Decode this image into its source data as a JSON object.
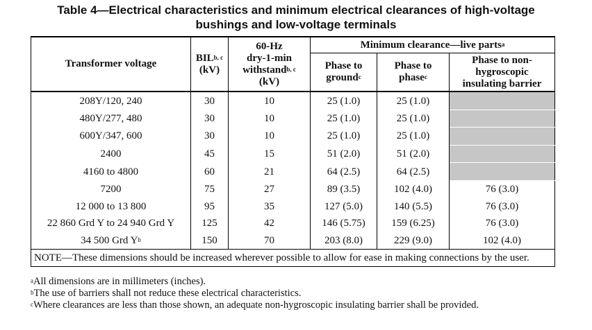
{
  "title_line1": "Table 4—Electrical characteristics and minimum electrical clearances of high-voltage",
  "title_line2": "bushings and low-voltage terminals",
  "headers": {
    "transformer_voltage": "Transformer voltage",
    "bil_1": "BIL",
    "bil_sup": "b, c",
    "bil_2": "(kV)",
    "hz_1": "60-Hz",
    "hz_2": "dry-1-min",
    "hz_3": "withstand",
    "hz_sup": "b, c",
    "hz_4": "(kV)",
    "min_clearance": "Minimum clearance—live parts",
    "min_clearance_sup": "a",
    "pg_1": "Phase to",
    "pg_2": "ground",
    "pg_sup": "c",
    "pp_1": "Phase to",
    "pp_2": "phase",
    "pp_sup": "c",
    "barrier_1": "Phase to non-",
    "barrier_2": "hygroscopic",
    "barrier_3": "insulating barrier"
  },
  "rows": [
    {
      "voltage": "208Y/120, 240",
      "voltage_sup": "",
      "bil": "30",
      "withstand": "10",
      "phase_ground": "25 (1.0)",
      "phase_phase": "25 (1.0)",
      "barrier": ""
    },
    {
      "voltage": "480Y/277, 480",
      "voltage_sup": "",
      "bil": "30",
      "withstand": "10",
      "phase_ground": "25 (1.0)",
      "phase_phase": "25 (1.0)",
      "barrier": ""
    },
    {
      "voltage": "600Y/347, 600",
      "voltage_sup": "",
      "bil": "30",
      "withstand": "10",
      "phase_ground": "25 (1.0)",
      "phase_phase": "25 (1.0)",
      "barrier": ""
    },
    {
      "voltage": "2400",
      "voltage_sup": "",
      "bil": "45",
      "withstand": "15",
      "phase_ground": "51 (2.0)",
      "phase_phase": "51 (2.0)",
      "barrier": ""
    },
    {
      "voltage": "4160 to 4800",
      "voltage_sup": "",
      "bil": "60",
      "withstand": "21",
      "phase_ground": "64 (2.5)",
      "phase_phase": "64 (2.5)",
      "barrier": ""
    },
    {
      "voltage": "7200",
      "voltage_sup": "",
      "bil": "75",
      "withstand": "27",
      "phase_ground": "89 (3.5)",
      "phase_phase": "102 (4.0)",
      "barrier": "76 (3.0)"
    },
    {
      "voltage": "12 000 to 13 800",
      "voltage_sup": "",
      "bil": "95",
      "withstand": "35",
      "phase_ground": "127 (5.0)",
      "phase_phase": "140 (5.5)",
      "barrier": "76 (3.0)"
    },
    {
      "voltage": "22 860 Grd Y to 24 940 Grd Y",
      "voltage_sup": "",
      "bil": "125",
      "withstand": "42",
      "phase_ground": "146 (5.75)",
      "phase_phase": "159 (6.25)",
      "barrier": "76 (3.0)"
    },
    {
      "voltage": "34 500 Grd Y",
      "voltage_sup": "b",
      "bil": "150",
      "withstand": "70",
      "phase_ground": "203 (8.0)",
      "phase_phase": "229 (9.0)",
      "barrier": "102 (4.0)"
    }
  ],
  "note": "NOTE—These dimensions should be increased wherever possible to allow for ease in making connections by the user.",
  "footnotes": [
    {
      "mark": "a",
      "text": "All dimensions are in millimeters (inches)."
    },
    {
      "mark": "b",
      "text": "The use of barriers shall not reduce these electrical characteristics."
    },
    {
      "mark": "c",
      "text": "Where clearances are less than those shown, an adequate non-hygroscopic insulating barrier shall be provided."
    }
  ],
  "colors": {
    "shaded_cell": "#c6c6c6"
  }
}
